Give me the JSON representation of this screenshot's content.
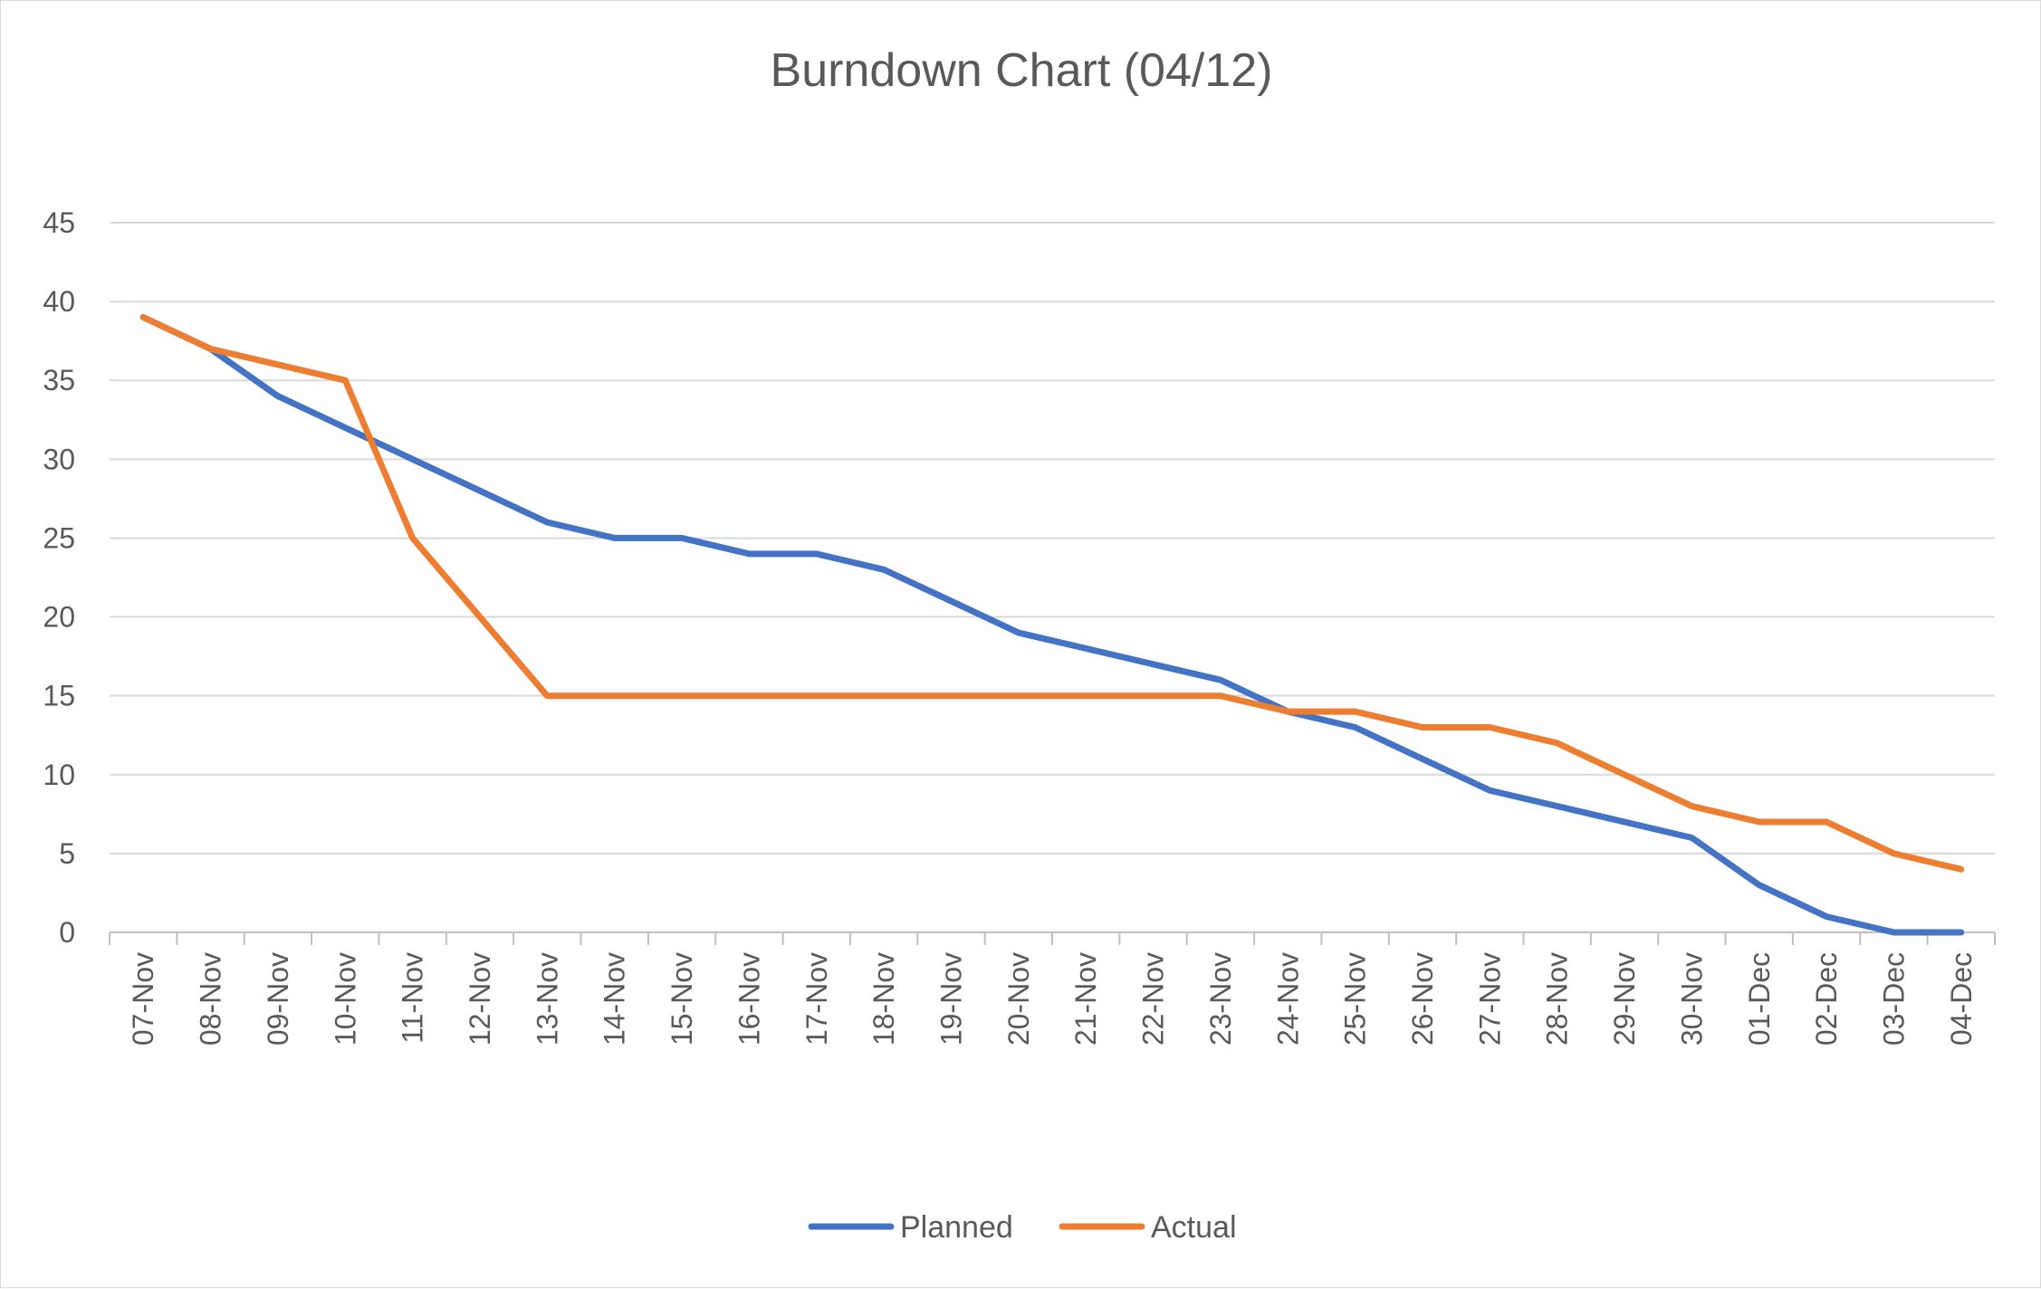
{
  "chart_data": {
    "type": "line",
    "title": "Burndown Chart (04/12)",
    "xlabel": "",
    "ylabel": "",
    "categories": [
      "07-Nov",
      "08-Nov",
      "09-Nov",
      "10-Nov",
      "11-Nov",
      "12-Nov",
      "13-Nov",
      "14-Nov",
      "15-Nov",
      "16-Nov",
      "17-Nov",
      "18-Nov",
      "19-Nov",
      "20-Nov",
      "21-Nov",
      "22-Nov",
      "23-Nov",
      "24-Nov",
      "25-Nov",
      "26-Nov",
      "27-Nov",
      "28-Nov",
      "29-Nov",
      "30-Nov",
      "01-Dec",
      "02-Dec",
      "03-Dec",
      "04-Dec"
    ],
    "ylim": [
      0,
      45
    ],
    "yticks": [
      0,
      5,
      10,
      15,
      20,
      25,
      30,
      35,
      40,
      45
    ],
    "grid": true,
    "legend": "bottom",
    "series": [
      {
        "name": "Planned",
        "color": "#4472C4",
        "values": [
          39,
          37,
          34,
          32,
          30,
          28,
          26,
          25,
          25,
          24,
          24,
          23,
          21,
          19,
          18,
          17,
          16,
          14,
          13,
          11,
          9,
          8,
          7,
          6,
          3,
          1,
          0,
          0
        ]
      },
      {
        "name": "Actual",
        "color": "#ED7D31",
        "values": [
          39,
          37,
          36,
          35,
          25,
          20,
          15,
          15,
          15,
          15,
          15,
          15,
          15,
          15,
          15,
          15,
          15,
          14,
          14,
          13,
          13,
          12,
          10,
          8,
          7,
          7,
          5,
          4
        ]
      }
    ]
  }
}
